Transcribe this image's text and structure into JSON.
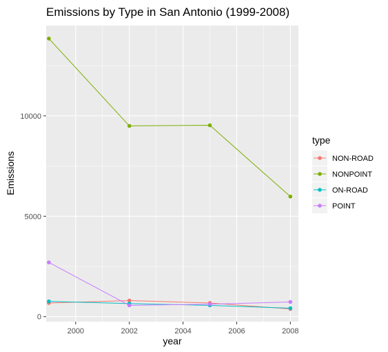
{
  "chart_data": {
    "type": "line",
    "title": "Emissions by Type in San Antonio (1999-2008)",
    "xlabel": "year",
    "ylabel": "Emissions",
    "x": [
      1999,
      2002,
      2005,
      2008
    ],
    "xlim": [
      1998.9,
      2008.3
    ],
    "ylim": [
      -250,
      14500
    ],
    "xticks": [
      2000,
      2002,
      2004,
      2006,
      2008
    ],
    "yticks": [
      0,
      5000,
      10000
    ],
    "grid": true,
    "legend": {
      "title": "type",
      "position": "right"
    },
    "series": [
      {
        "name": "NON-ROAD",
        "color": "#F8766D",
        "values": [
          680,
          800,
          680,
          380
        ]
      },
      {
        "name": "NONPOINT",
        "color": "#7CAE00",
        "values": [
          13850,
          9500,
          9530,
          5980
        ]
      },
      {
        "name": "ON-ROAD",
        "color": "#00BFC4",
        "values": [
          760,
          650,
          560,
          420
        ]
      },
      {
        "name": "POINT",
        "color": "#C77CFF",
        "values": [
          2700,
          560,
          620,
          730
        ]
      }
    ]
  }
}
